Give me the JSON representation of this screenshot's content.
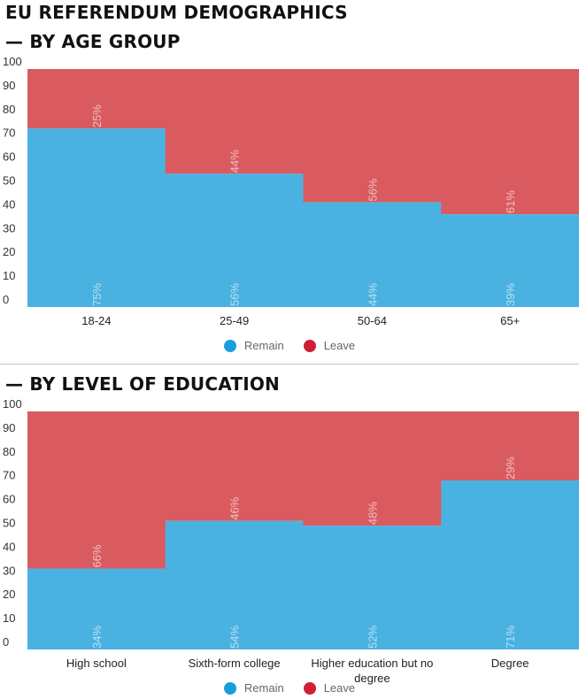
{
  "title_line1": "EU REFERENDUM DEMOGRAPHICS",
  "chart_data": [
    {
      "type": "bar",
      "stacked": true,
      "title": "— BY AGE GROUP",
      "categories": [
        "18-24",
        "25-49",
        "50-64",
        "65+"
      ],
      "series": [
        {
          "name": "Remain",
          "values": [
            75,
            56,
            44,
            39
          ],
          "labels": [
            "75%",
            "56%",
            "44%",
            "39%"
          ],
          "color": "#4ab2e1"
        },
        {
          "name": "Leave",
          "values": [
            25,
            44,
            56,
            61
          ],
          "labels": [
            "25%",
            "44%",
            "56%",
            "61%"
          ],
          "color": "#d95b60"
        }
      ],
      "ylim": [
        0,
        100
      ],
      "yticks": [
        "0",
        "10",
        "20",
        "30",
        "40",
        "50",
        "60",
        "70",
        "80",
        "90",
        "100"
      ],
      "grid": false,
      "legend": "bottom-center"
    },
    {
      "type": "bar",
      "stacked": true,
      "title": "— BY LEVEL OF EDUCATION",
      "categories": [
        "High school",
        "Sixth-form college",
        "Higher education but no degree",
        "Degree"
      ],
      "series": [
        {
          "name": "Remain",
          "values": [
            34,
            54,
            52,
            71
          ],
          "labels": [
            "34%",
            "54%",
            "52%",
            "71%"
          ],
          "color": "#4ab2e1"
        },
        {
          "name": "Leave",
          "values": [
            66,
            46,
            48,
            29
          ],
          "labels": [
            "66%",
            "46%",
            "48%",
            "29%"
          ],
          "color": "#d95b60"
        }
      ],
      "ylim": [
        0,
        100
      ],
      "yticks": [
        "0",
        "10",
        "20",
        "30",
        "40",
        "50",
        "60",
        "70",
        "80",
        "90",
        "100"
      ],
      "grid": false,
      "legend": "bottom-center"
    }
  ],
  "legend": {
    "remain_label": "Remain",
    "leave_label": "Leave",
    "remain_color": "#1a9ddb",
    "leave_color": "#d01f35"
  }
}
